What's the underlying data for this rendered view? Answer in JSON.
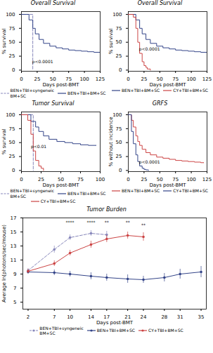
{
  "chart_data": [
    {
      "type": "step",
      "title": "Overall Survival",
      "xlabel": "Days post-BMT",
      "ylabel": "% survival",
      "xlim": [
        0,
        125
      ],
      "ylim": [
        -2,
        105
      ],
      "xticks": [
        0,
        25,
        50,
        75,
        100,
        125
      ],
      "yticks": [
        0,
        25,
        50,
        75,
        100
      ],
      "grid": false,
      "legend": "bottom",
      "annotations": [
        {
          "text": "p<0.0001",
          "x": 17,
          "y": 12
        }
      ],
      "series": [
        {
          "name": "BEN+TBI+syngeneic\nBM+SC",
          "color": "#8888bb",
          "line_style": "dashed",
          "x": [
            0,
            18,
            18,
            18.01
          ],
          "values": [
            100,
            100,
            100,
            0
          ]
        },
        {
          "name": "BEN+TBI+BM+SC",
          "color": "#334488",
          "line_style": "solid",
          "x": [
            0,
            8,
            12,
            18,
            22,
            28,
            35,
            45,
            55,
            65,
            75,
            85,
            95,
            105,
            115,
            125
          ],
          "values": [
            100,
            100,
            90,
            75,
            65,
            55,
            48,
            43,
            40,
            38,
            36,
            35,
            34,
            33,
            32,
            32
          ]
        }
      ]
    },
    {
      "type": "step",
      "title": "Overall Survival",
      "xlabel": "Days post-BMT",
      "ylabel": "% survival",
      "xlim": [
        0,
        125
      ],
      "ylim": [
        -2,
        105
      ],
      "xticks": [
        0,
        25,
        50,
        75,
        100,
        125
      ],
      "yticks": [
        0,
        25,
        50,
        75,
        100
      ],
      "grid": false,
      "legend": "bottom",
      "annotations": [
        {
          "text": "p<0.0001",
          "x": 17,
          "y": 35
        }
      ],
      "series": [
        {
          "name": "BEN+TBI+BM+SC",
          "color": "#334488",
          "line_style": "solid",
          "x": [
            0,
            8,
            12,
            18,
            22,
            28,
            35,
            45,
            55,
            65,
            75,
            85,
            95,
            105,
            115,
            125
          ],
          "values": [
            100,
            100,
            90,
            75,
            65,
            55,
            48,
            43,
            40,
            38,
            36,
            35,
            34,
            33,
            32,
            32
          ]
        },
        {
          "name": "CY+TBI+BM+SC",
          "color": "#cc4444",
          "line_style": "solid",
          "x": [
            0,
            8,
            12,
            15,
            18,
            22,
            25,
            28,
            30,
            35
          ],
          "values": [
            100,
            95,
            75,
            50,
            30,
            15,
            8,
            5,
            2,
            0
          ]
        }
      ]
    },
    {
      "type": "step",
      "title": "Tumor Survival",
      "xlabel": "Days post-BMT",
      "ylabel": "% survival",
      "xlim": [
        0,
        100
      ],
      "ylim": [
        -2,
        105
      ],
      "xticks": [
        0,
        25,
        50,
        75,
        100
      ],
      "yticks": [
        0,
        25,
        50,
        75,
        100
      ],
      "grid": false,
      "legend": "bottom",
      "annotations": [
        {
          "text": "p<0.01",
          "x": 12,
          "y": 40
        }
      ],
      "series": [
        {
          "name": "BEN+TBI+syngeneic\nBM+SC",
          "color": "#8888bb",
          "line_style": "dashed",
          "x": [
            0,
            15,
            15,
            15.01
          ],
          "values": [
            100,
            100,
            100,
            0
          ]
        },
        {
          "name": "BEN+TBI+BM+SC",
          "color": "#334488",
          "line_style": "solid",
          "x": [
            0,
            8,
            12,
            18,
            22,
            28,
            35,
            45,
            55,
            65,
            75,
            85,
            95
          ],
          "values": [
            100,
            100,
            88,
            78,
            70,
            62,
            56,
            52,
            50,
            48,
            46,
            45,
            45
          ]
        },
        {
          "name": "CY+TBI+BM+SC",
          "color": "#cc4444",
          "line_style": "solid",
          "x": [
            0,
            8,
            12,
            15,
            18,
            22,
            25,
            28
          ],
          "values": [
            100,
            90,
            65,
            35,
            18,
            8,
            4,
            0
          ]
        }
      ]
    },
    {
      "type": "step",
      "title": "GRFS",
      "xlabel": "Days post-BMT",
      "ylabel": "% without incidence",
      "xlim": [
        0,
        125
      ],
      "ylim": [
        -2,
        105
      ],
      "xticks": [
        0,
        25,
        50,
        75,
        100,
        125
      ],
      "yticks": [
        0,
        25,
        50,
        75,
        100
      ],
      "grid": false,
      "legend": "bottom",
      "annotations": [
        {
          "text": "p<0.0001",
          "x": 17,
          "y": 12
        }
      ],
      "series": [
        {
          "name": "BEN+TBI+BM+SC",
          "color": "#cc4444",
          "line_style": "solid",
          "x": [
            0,
            5,
            8,
            12,
            15,
            18,
            22,
            28,
            35,
            45,
            55,
            65,
            75,
            85,
            95,
            105,
            115,
            120
          ],
          "values": [
            100,
            90,
            78,
            62,
            52,
            45,
            38,
            32,
            28,
            24,
            22,
            20,
            18,
            17,
            16,
            15,
            14,
            14
          ]
        },
        {
          "name": "CY+TBI+BM+SC",
          "color": "#334488",
          "line_style": "solid",
          "x": [
            0,
            5,
            8,
            12,
            15,
            18,
            22,
            25,
            28,
            32
          ],
          "values": [
            100,
            70,
            48,
            28,
            16,
            8,
            4,
            2,
            1,
            0
          ]
        }
      ]
    },
    {
      "type": "line",
      "title": "Tumor Burden",
      "xlabel": "Days post-BMT",
      "ylabel": "Average ln(photons/sec/mouse)",
      "xlim": [
        1,
        36
      ],
      "ylim": [
        4,
        17
      ],
      "xticks": [
        2,
        7,
        10,
        14,
        17,
        21,
        24,
        28,
        31,
        35
      ],
      "yticks": [
        5,
        7,
        9,
        11,
        13,
        15,
        17
      ],
      "grid": false,
      "legend": "bottom",
      "annotations": [
        {
          "text": "****",
          "x": 10,
          "y": 16.2
        },
        {
          "text": "****",
          "x": 14,
          "y": 16.2
        },
        {
          "text": "**",
          "x": 17,
          "y": 16.2
        },
        {
          "text": "**",
          "x": 21,
          "y": 16.2
        },
        {
          "text": "**",
          "x": 24,
          "y": 15.8
        }
      ],
      "series": [
        {
          "name": "BEN+TBI+syngeneic\nBM+SC",
          "color": "#8888bb",
          "line_style": "dashed",
          "marker": "circle",
          "x": [
            2,
            7,
            10,
            14,
            17
          ],
          "values": [
            9.5,
            12.5,
            14.2,
            14.8,
            14.6
          ],
          "yerr": [
            0.3,
            0.5,
            0.4,
            0.4,
            0.5
          ]
        },
        {
          "name": "BEN+TBI+BM+SC",
          "color": "#334488",
          "line_style": "solid",
          "marker": "circle",
          "x": [
            2,
            7,
            10,
            14,
            17,
            21,
            24,
            28,
            31,
            35
          ],
          "values": [
            9.3,
            9.2,
            9.0,
            8.7,
            8.5,
            8.3,
            8.2,
            8.5,
            9.0,
            9.3
          ],
          "yerr": [
            0.3,
            0.4,
            0.4,
            0.5,
            0.5,
            0.6,
            0.5,
            0.6,
            0.7,
            0.8
          ]
        },
        {
          "name": "CY+TBI+BM+SC",
          "color": "#cc4444",
          "line_style": "solid",
          "marker": "circle",
          "x": [
            2,
            7,
            10,
            14,
            17,
            21,
            24
          ],
          "values": [
            9.4,
            10.5,
            12.0,
            13.2,
            14.0,
            14.5,
            14.3
          ],
          "yerr": [
            0.3,
            0.4,
            0.4,
            0.5,
            0.5,
            0.5,
            0.6
          ]
        }
      ]
    }
  ]
}
